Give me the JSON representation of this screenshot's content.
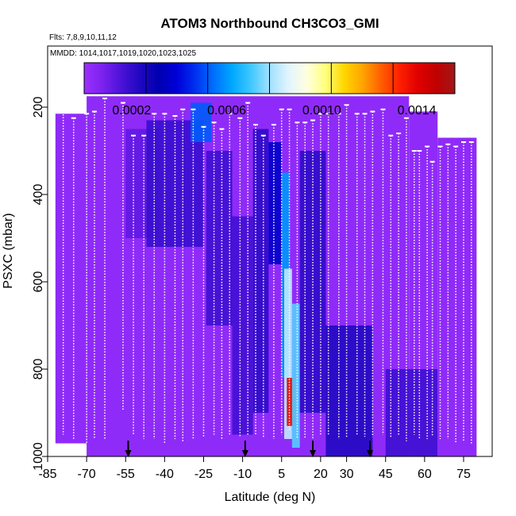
{
  "chart_data": {
    "type": "heatmap",
    "title": "ATOM3 Northbound CH3CO3_GMI",
    "flights_label": "Flts: 7,8,9,10,11,12",
    "dates_label": "MMDD: 1014,1017,1019,1020,1023,1025",
    "xlabel": "Latitude (deg N)",
    "ylabel": "PSXC (mbar)",
    "xlim": [
      -85,
      86
    ],
    "ylim": [
      1000,
      60
    ],
    "x_ticks": [
      "-85",
      "-70",
      "-55",
      "-40",
      "-25",
      "-10",
      "5",
      "20",
      "30",
      "45",
      "60",
      "75"
    ],
    "x_tick_values": [
      -85,
      -70,
      -55,
      -40,
      -25,
      -10,
      5,
      20,
      30,
      45,
      60,
      75
    ],
    "y_ticks": [
      "200",
      "400",
      "600",
      "800",
      "1000"
    ],
    "y_tick_values": [
      200,
      400,
      600,
      800,
      1000
    ],
    "colorbar": {
      "range": [
        0,
        0.00156
      ],
      "tick_values": [
        0.0002,
        0.0006,
        0.001,
        0.0014
      ],
      "tick_labels": [
        "0.0002",
        "0.0006",
        "0.0010",
        "0.0014"
      ],
      "colors": [
        "#9b30ff",
        "#7b22ee",
        "#4b12d8",
        "#2008c0",
        "#0000b0",
        "#0000d8",
        "#0030f0",
        "#0070ff",
        "#00a8ff",
        "#40c8ff",
        "#a0e0ff",
        "#e0f4ff",
        "#ffffe0",
        "#ffff80",
        "#ffd700",
        "#ffa500",
        "#ff6000",
        "#ff2000",
        "#e00000",
        "#c00000",
        "#a01818"
      ]
    },
    "coverage_regions": [
      {
        "lat": [
          -82,
          -70
        ],
        "p_top": 215,
        "p_bottom": 970
      },
      {
        "lat": [
          -70,
          54
        ],
        "p_top": 175,
        "p_bottom": 1000
      },
      {
        "lat": [
          54,
          65
        ],
        "p_top": 210,
        "p_bottom": 1000
      },
      {
        "lat": [
          65,
          80
        ],
        "p_top": 270,
        "p_bottom": 1000
      }
    ],
    "field": [
      {
        "lat": [
          -55,
          -42
        ],
        "p": [
          250,
          500
        ],
        "value": 0.00012
      },
      {
        "lat": [
          -47,
          -25
        ],
        "p": [
          230,
          520
        ],
        "value": 0.00019
      },
      {
        "lat": [
          -30,
          -22
        ],
        "p": [
          190,
          280
        ],
        "value": 0.00052
      },
      {
        "lat": [
          -24,
          -14
        ],
        "p": [
          300,
          700
        ],
        "value": 0.00018
      },
      {
        "lat": [
          -14,
          -6
        ],
        "p": [
          450,
          950
        ],
        "value": 0.00017
      },
      {
        "lat": [
          -6,
          0
        ],
        "p": [
          250,
          900
        ],
        "value": 0.00021
      },
      {
        "lat": [
          0,
          5
        ],
        "p": [
          280,
          560
        ],
        "value": 0.00036
      },
      {
        "lat": [
          5,
          8
        ],
        "p": [
          350,
          820
        ],
        "value": 0.0006
      },
      {
        "lat": [
          6,
          9
        ],
        "p": [
          570,
          960
        ],
        "value": 0.00082
      },
      {
        "lat": [
          7,
          10
        ],
        "p": [
          820,
          930
        ],
        "value": 0.0014
      },
      {
        "lat": [
          9,
          12
        ],
        "p": [
          650,
          980
        ],
        "value": 0.00072
      },
      {
        "lat": [
          12,
          22
        ],
        "p": [
          300,
          900
        ],
        "value": 0.00021
      },
      {
        "lat": [
          22,
          40
        ],
        "p": [
          700,
          1000
        ],
        "value": 0.00023
      },
      {
        "lat": [
          45,
          65
        ],
        "p": [
          800,
          1000
        ],
        "value": 0.00018
      }
    ],
    "flight_profiles": [
      {
        "lat": -79,
        "p": [
          210,
          950
        ]
      },
      {
        "lat": -75,
        "p": [
          225,
          960
        ]
      },
      {
        "lat": -70,
        "p": [
          215,
          970
        ]
      },
      {
        "lat": -67,
        "p": [
          210,
          960
        ]
      },
      {
        "lat": -63,
        "p": [
          180,
          960
        ]
      },
      {
        "lat": -56,
        "p": [
          190,
          895
        ]
      },
      {
        "lat": -52,
        "p": [
          265,
          950
        ]
      },
      {
        "lat": -48,
        "p": [
          265,
          960
        ]
      },
      {
        "lat": -44,
        "p": [
          215,
          960
        ]
      },
      {
        "lat": -40,
        "p": [
          215,
          970
        ]
      },
      {
        "lat": -36,
        "p": [
          220,
          960
        ]
      },
      {
        "lat": -33,
        "p": [
          205,
          965
        ]
      },
      {
        "lat": -29,
        "p": [
          205,
          960
        ]
      },
      {
        "lat": -25,
        "p": [
          245,
          955
        ]
      },
      {
        "lat": -21,
        "p": [
          235,
          950
        ]
      },
      {
        "lat": -18,
        "p": [
          250,
          960
        ]
      },
      {
        "lat": -15,
        "p": [
          215,
          950
        ]
      },
      {
        "lat": -11,
        "p": [
          225,
          955
        ]
      },
      {
        "lat": -8,
        "p": [
          190,
          950
        ]
      },
      {
        "lat": -5,
        "p": [
          240,
          950
        ]
      },
      {
        "lat": -2,
        "p": [
          265,
          955
        ]
      },
      {
        "lat": 2,
        "p": [
          240,
          960
        ]
      },
      {
        "lat": 5,
        "p": [
          205,
          950
        ]
      },
      {
        "lat": 8,
        "p": [
          205,
          940
        ]
      },
      {
        "lat": 11,
        "p": [
          235,
          960
        ]
      },
      {
        "lat": 14,
        "p": [
          235,
          960
        ]
      },
      {
        "lat": 17,
        "p": [
          230,
          960
        ]
      },
      {
        "lat": 20,
        "p": [
          215,
          950
        ]
      },
      {
        "lat": 23,
        "p": [
          215,
          950
        ]
      },
      {
        "lat": 27,
        "p": [
          215,
          960
        ]
      },
      {
        "lat": 30,
        "p": [
          195,
          955
        ]
      },
      {
        "lat": 34,
        "p": [
          215,
          950
        ]
      },
      {
        "lat": 37,
        "p": [
          215,
          955
        ]
      },
      {
        "lat": 40,
        "p": [
          210,
          955
        ]
      },
      {
        "lat": 44,
        "p": [
          205,
          950
        ]
      },
      {
        "lat": 47,
        "p": [
          265,
          955
        ]
      },
      {
        "lat": 50,
        "p": [
          260,
          950
        ]
      },
      {
        "lat": 53,
        "p": [
          225,
          965
        ]
      },
      {
        "lat": 56,
        "p": [
          300,
          950
        ]
      },
      {
        "lat": 58,
        "p": [
          300,
          960
        ]
      },
      {
        "lat": 61,
        "p": [
          290,
          960
        ]
      },
      {
        "lat": 63,
        "p": [
          325,
          955
        ]
      },
      {
        "lat": 66,
        "p": [
          290,
          960
        ]
      },
      {
        "lat": 69,
        "p": [
          285,
          960
        ]
      },
      {
        "lat": 72,
        "p": [
          290,
          970
        ]
      },
      {
        "lat": 75,
        "p": [
          280,
          965
        ]
      },
      {
        "lat": 78,
        "p": [
          280,
          970
        ]
      }
    ],
    "arrow_markers_lat": [
      -54,
      -9,
      17,
      39
    ]
  }
}
